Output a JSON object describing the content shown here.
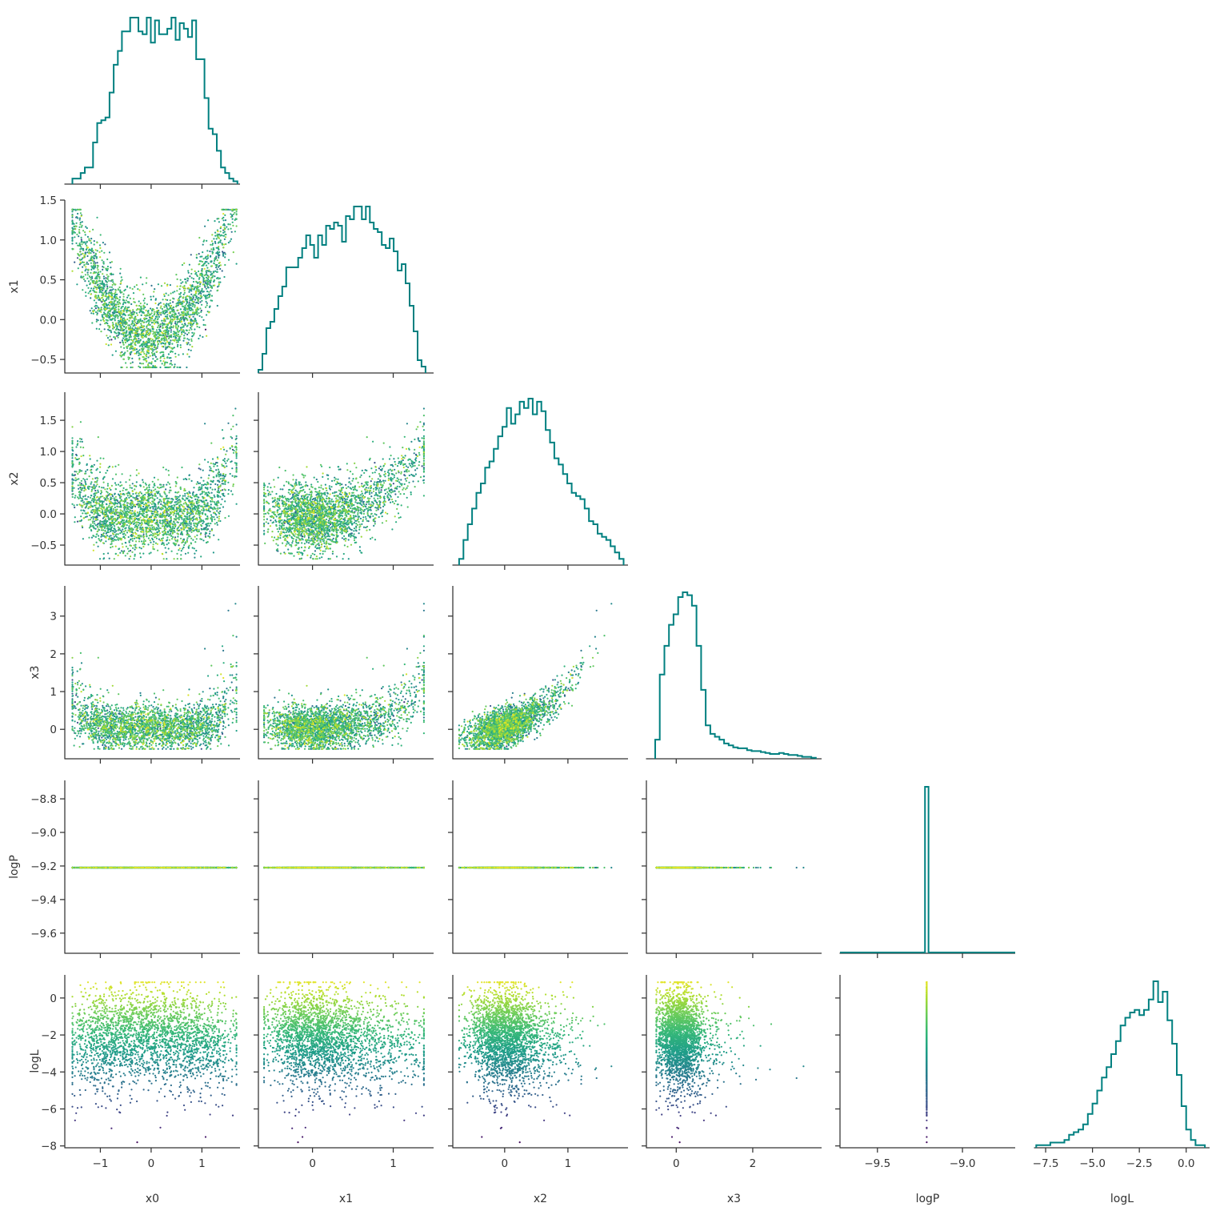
{
  "chart_data": {
    "type": "corner",
    "parameters": [
      "x0",
      "x1",
      "x2",
      "x3",
      "logP",
      "logL"
    ],
    "colormap": "viridis",
    "colored_by": "logL",
    "histogram_color": "#008080",
    "axis_ranges": {
      "x0": [
        -1.7,
        1.75
      ],
      "x1": [
        -0.67,
        1.5
      ],
      "x2": [
        -0.82,
        1.95
      ],
      "x3": [
        -0.78,
        3.8
      ],
      "logP": [
        -9.72,
        -8.69
      ],
      "logL": [
        -8.1,
        1.25
      ]
    },
    "x_tick_values": {
      "x0": [
        -1,
        0,
        1
      ],
      "x1": [
        0,
        1
      ],
      "x2": [
        0,
        1
      ],
      "x3": [
        0,
        2
      ],
      "logP": [
        -9.5,
        -9.0
      ],
      "logL": [
        -7.5,
        -5.0,
        -2.5,
        0.0
      ]
    },
    "x_tick_labels": {
      "x0": [
        "−1",
        "0",
        "1"
      ],
      "x1": [
        "0",
        "1"
      ],
      "x2": [
        "0",
        "1"
      ],
      "x3": [
        "0",
        "2"
      ],
      "logP": [
        "−9.5",
        "−9.0"
      ],
      "logL": [
        "−7.5",
        "−5.0",
        "−2.5",
        "0.0"
      ]
    },
    "y_tick_values": {
      "x1": [
        -0.5,
        0.0,
        0.5,
        1.0,
        1.5
      ],
      "x2": [
        -0.5,
        0.0,
        0.5,
        1.0,
        1.5
      ],
      "x3": [
        0,
        1,
        2,
        3
      ],
      "logP": [
        -9.6,
        -9.4,
        -9.2,
        -9.0,
        -8.8
      ],
      "logL": [
        -8,
        -6,
        -4,
        -2,
        0
      ]
    },
    "y_tick_labels": {
      "x1": [
        "−0.5",
        "0.0",
        "0.5",
        "1.0",
        "1.5"
      ],
      "x2": [
        "−0.5",
        "0.0",
        "0.5",
        "1.0",
        "1.5"
      ],
      "x3": [
        "0",
        "1",
        "2",
        "3"
      ],
      "logP": [
        "−9.6",
        "−9.4",
        "−9.2",
        "−9.0",
        "−8.8"
      ],
      "logL": [
        "−8",
        "−6",
        "−4",
        "−2",
        "0"
      ]
    },
    "logP_value": -9.21,
    "diagonal_histograms": {
      "x0": {
        "range": [
          -1.55,
          1.7
        ],
        "counts": [
          2,
          2,
          4,
          6,
          6,
          15,
          22,
          23,
          24,
          33,
          43,
          48,
          55,
          55,
          60,
          60,
          55,
          54,
          60,
          51,
          59,
          54,
          54,
          56,
          60,
          52,
          58,
          56,
          53,
          59,
          45,
          45,
          31,
          20,
          18,
          12,
          6,
          4,
          2,
          1
        ]
      },
      "x1": {
        "range": [
          -0.67,
          1.4
        ],
        "counts": [
          1,
          6,
          14,
          16,
          20,
          24,
          27,
          33,
          33,
          33,
          36,
          39,
          43,
          40,
          36,
          43,
          40,
          46,
          45,
          47,
          46,
          41,
          49,
          48,
          52,
          52,
          48,
          52,
          47,
          45,
          44,
          40,
          39,
          42,
          38,
          32,
          34,
          28,
          21,
          13,
          4,
          2
        ]
      },
      "x2": {
        "range": [
          -0.72,
          1.88
        ],
        "counts": [
          2,
          8,
          13,
          18,
          23,
          26,
          31,
          33,
          37,
          41,
          44,
          50,
          45,
          48,
          52,
          50,
          53,
          48,
          52,
          49,
          43,
          39,
          34,
          32,
          29,
          26,
          23,
          22,
          21,
          18,
          14,
          13,
          10,
          9,
          8,
          6,
          4,
          2
        ]
      },
      "x3": {
        "range": [
          -0.55,
          3.65
        ],
        "counts": [
          20,
          88,
          118,
          140,
          151,
          169,
          174,
          171,
          160,
          118,
          72,
          35,
          26,
          23,
          20,
          16,
          14,
          12,
          11,
          11,
          9,
          8,
          8,
          7,
          6,
          5,
          5,
          6,
          5,
          4,
          4,
          3,
          2,
          2,
          1
        ]
      },
      "logP": {
        "range": [
          -9.72,
          -8.69
        ],
        "spike_value": -9.21,
        "spike_count": 1
      },
      "logL": {
        "range": [
          -8.0,
          1.0
        ],
        "counts": [
          1,
          1,
          1,
          2,
          2,
          2,
          3,
          5,
          6,
          7,
          9,
          13,
          17,
          22,
          27,
          31,
          36,
          41,
          47,
          50,
          52,
          53,
          51,
          53,
          57,
          64,
          56,
          60,
          49,
          40,
          28,
          16,
          7,
          3,
          1,
          1
        ]
      }
    }
  }
}
